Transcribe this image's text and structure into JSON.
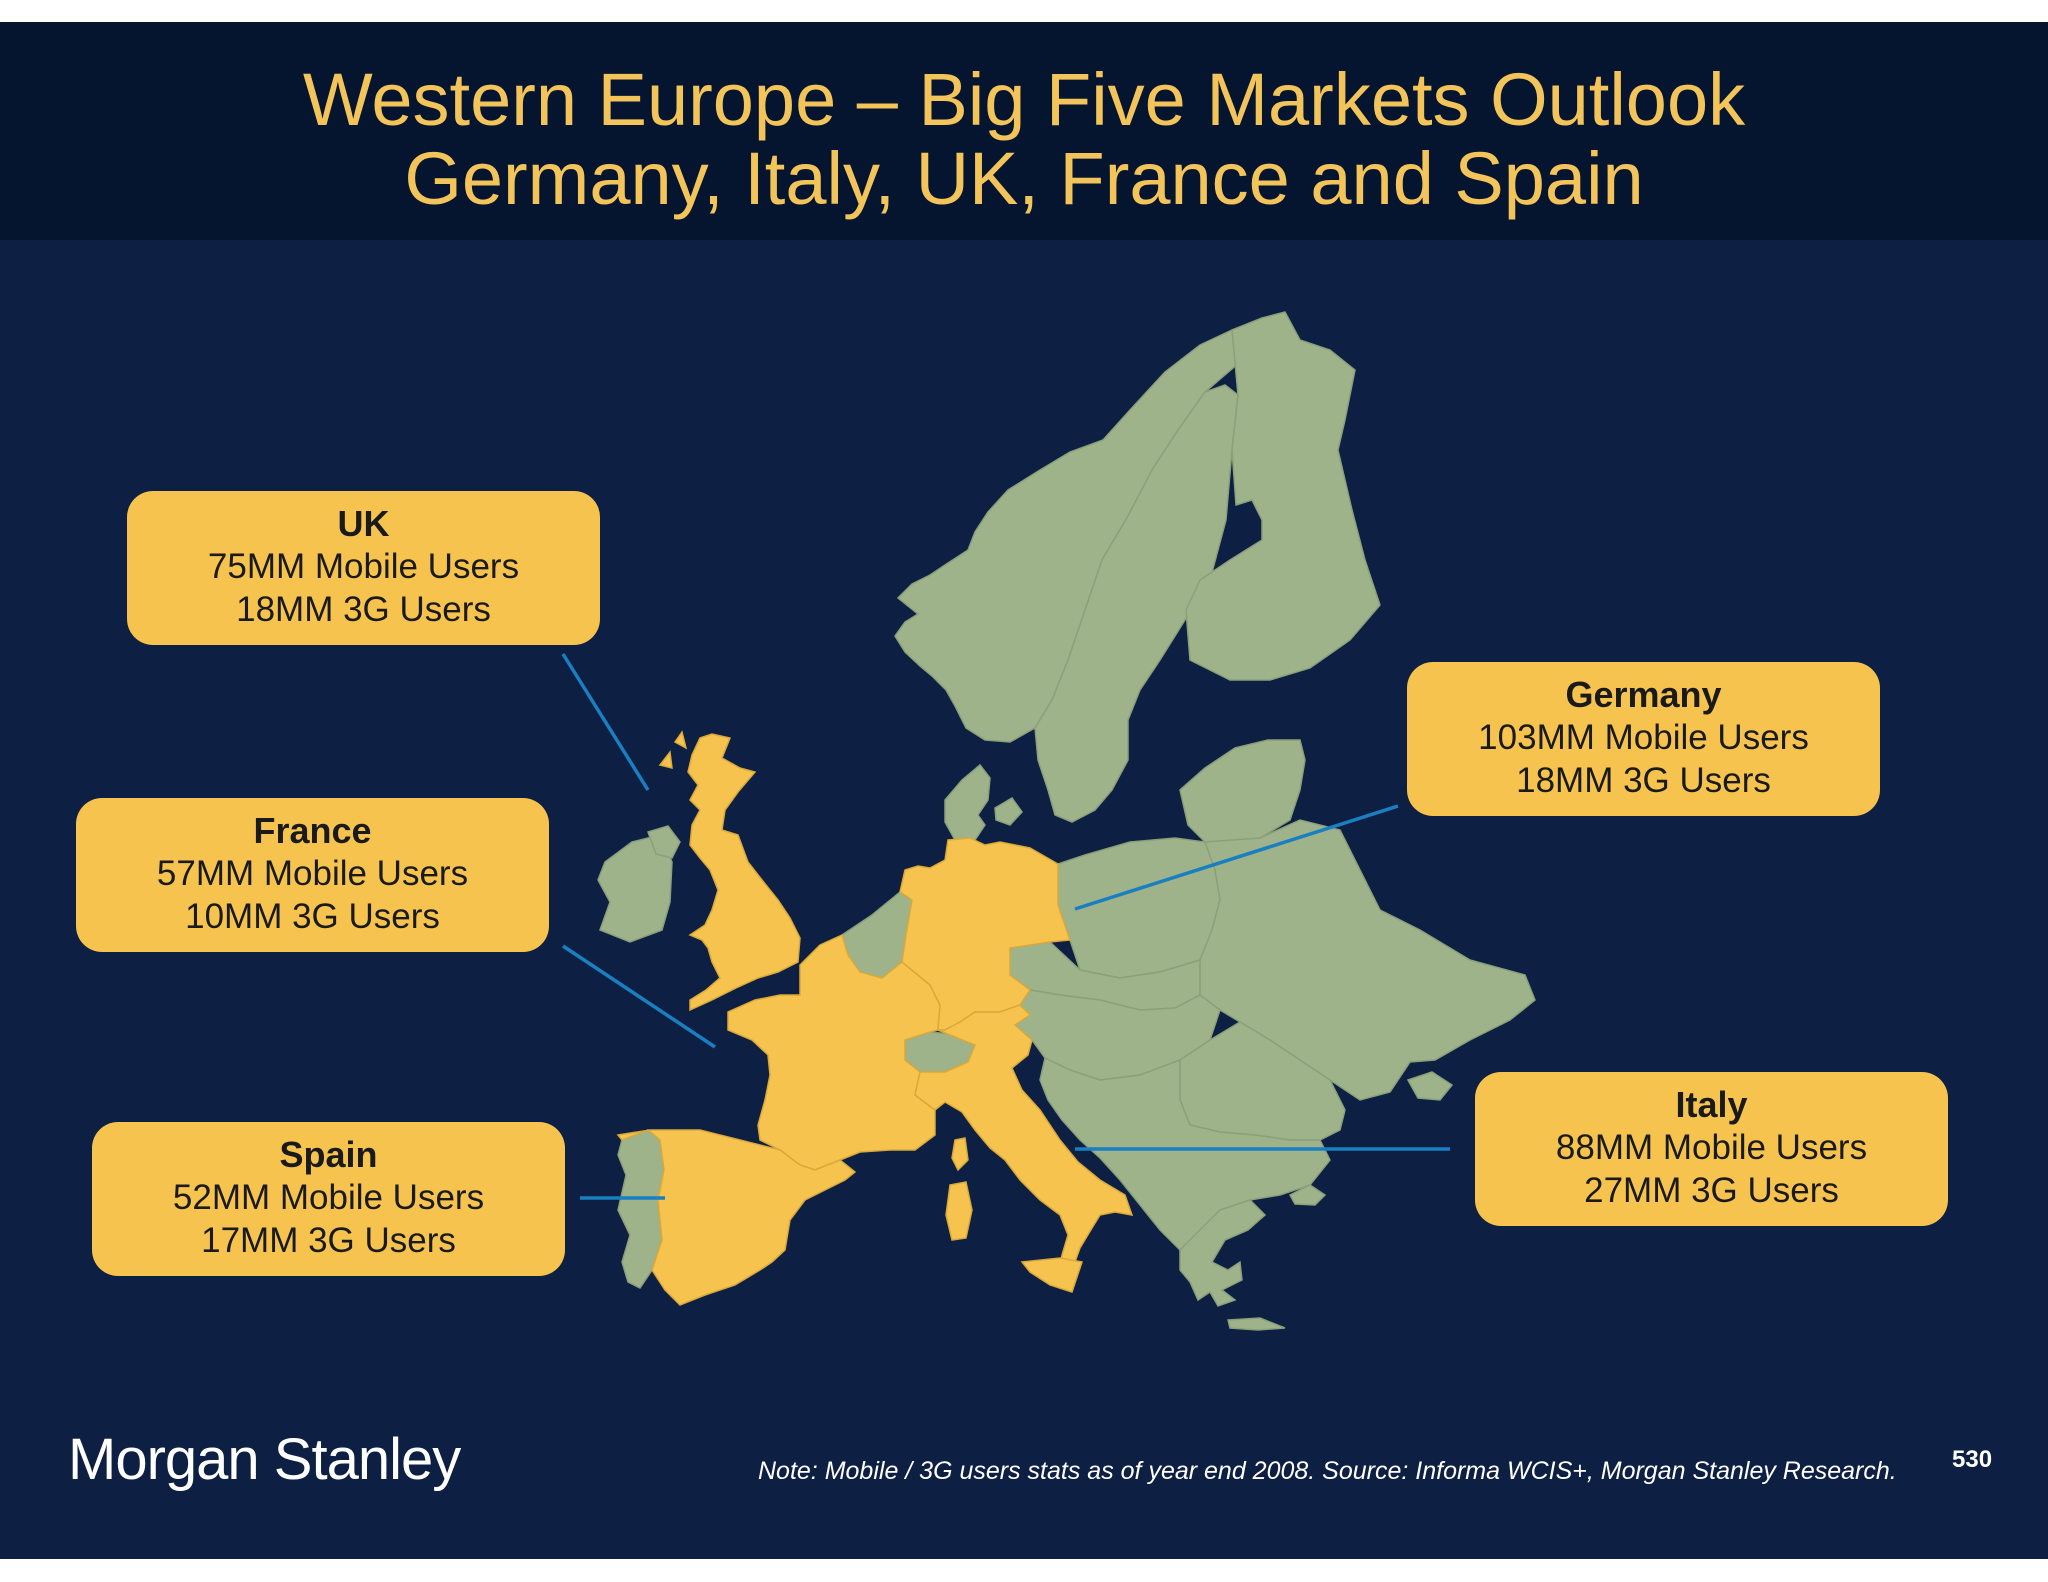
{
  "title": {
    "line1": "Western Europe – Big Five Markets Outlook",
    "line2": "Germany, Italy, UK, France and Spain"
  },
  "colors": {
    "background": "#0d1f42",
    "header": "#06152f",
    "title": "#f2c45a",
    "highlight_country": "#f5c34e",
    "other_country": "#9fb38b",
    "leader_line": "#1a7fc1"
  },
  "callouts": {
    "uk": {
      "name": "UK",
      "mobile": "75MM Mobile Users",
      "threeg": "18MM 3G Users"
    },
    "france": {
      "name": "France",
      "mobile": "57MM Mobile Users",
      "threeg": "10MM 3G Users"
    },
    "spain": {
      "name": "Spain",
      "mobile": "52MM Mobile Users",
      "threeg": "17MM 3G Users"
    },
    "germany": {
      "name": "Germany",
      "mobile": "103MM Mobile Users",
      "threeg": "18MM 3G Users"
    },
    "italy": {
      "name": "Italy",
      "mobile": "88MM Mobile Users",
      "threeg": "27MM 3G Users"
    }
  },
  "footer": {
    "logo": "Morgan Stanley",
    "note": "Note: Mobile / 3G users stats as of year end 2008. Source: Informa WCIS+, Morgan Stanley Research.",
    "page_number": "530"
  }
}
